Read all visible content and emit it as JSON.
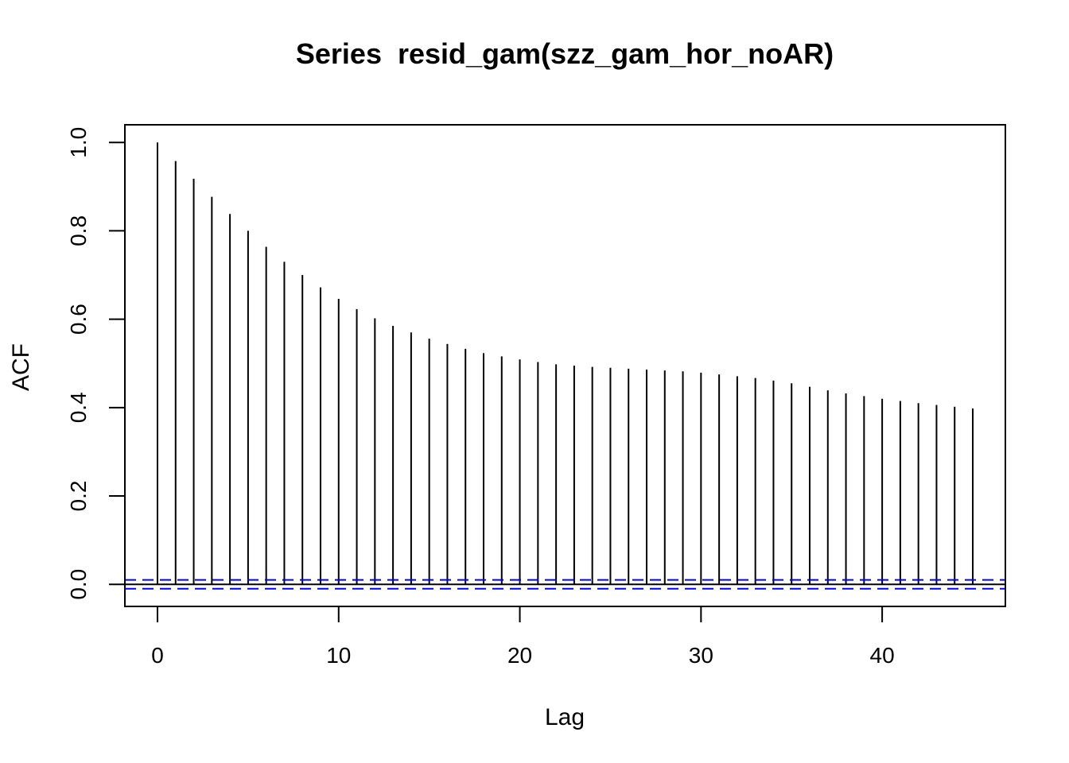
{
  "chart_data": {
    "type": "bar",
    "subtype": "acf",
    "title": "Series  resid_gam(szz_gam_hor_noAR)",
    "xlabel": "Lag",
    "ylabel": "ACF",
    "xlim": [
      -1.8,
      46.8
    ],
    "ylim": [
      -0.05,
      1.04
    ],
    "xticks": [
      0,
      10,
      20,
      30,
      40
    ],
    "xtick_labels": [
      "0",
      "10",
      "20",
      "30",
      "40"
    ],
    "yticks": [
      0.0,
      0.2,
      0.4,
      0.6,
      0.8,
      1.0
    ],
    "ytick_labels": [
      "0.0",
      "0.2",
      "0.4",
      "0.6",
      "0.8",
      "1.0"
    ],
    "x": [
      0,
      1,
      2,
      3,
      4,
      5,
      6,
      7,
      8,
      9,
      10,
      11,
      12,
      13,
      14,
      15,
      16,
      17,
      18,
      19,
      20,
      21,
      22,
      23,
      24,
      25,
      26,
      27,
      28,
      29,
      30,
      31,
      32,
      33,
      34,
      35,
      36,
      37,
      38,
      39,
      40,
      41,
      42,
      43,
      44,
      45
    ],
    "values": [
      1.0,
      0.958,
      0.918,
      0.877,
      0.838,
      0.8,
      0.764,
      0.73,
      0.7,
      0.672,
      0.646,
      0.623,
      0.602,
      0.585,
      0.57,
      0.556,
      0.544,
      0.533,
      0.523,
      0.516,
      0.509,
      0.503,
      0.498,
      0.495,
      0.492,
      0.49,
      0.488,
      0.486,
      0.484,
      0.482,
      0.479,
      0.475,
      0.471,
      0.467,
      0.461,
      0.455,
      0.447,
      0.439,
      0.432,
      0.426,
      0.42,
      0.415,
      0.41,
      0.406,
      0.402,
      0.398
    ],
    "confidence_bound": 0.01,
    "colors": {
      "bars": "#000000",
      "confidence": "#0000ff",
      "axis": "#000000"
    },
    "grid": false,
    "legend": "none"
  }
}
